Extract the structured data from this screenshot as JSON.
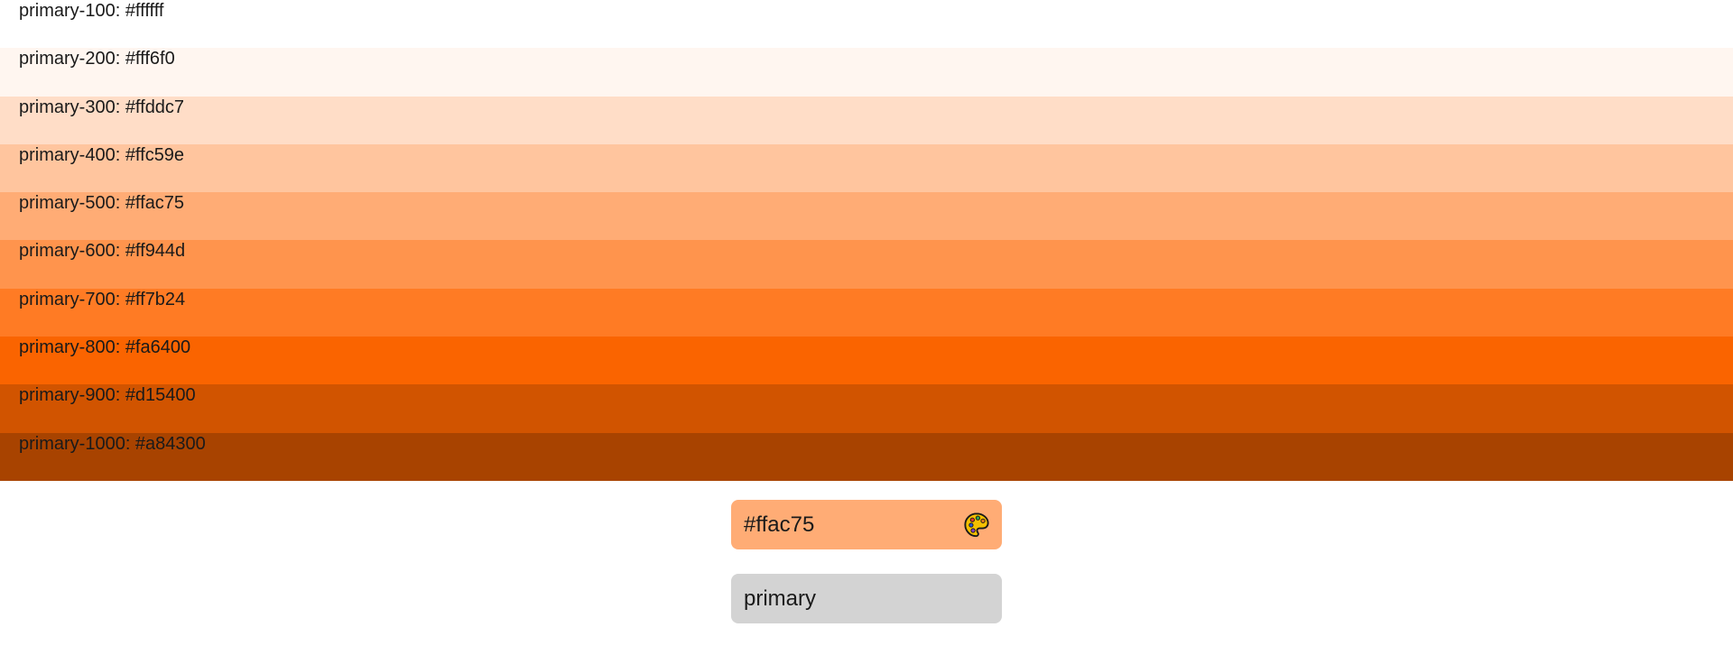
{
  "swatches": [
    {
      "label": "primary-100: #ffffff",
      "color": "#ffffff"
    },
    {
      "label": "primary-200: #fff6f0",
      "color": "#fff6f0"
    },
    {
      "label": "primary-300: #ffddc7",
      "color": "#ffddc7"
    },
    {
      "label": "primary-400: #ffc59e",
      "color": "#ffc59e"
    },
    {
      "label": "primary-500: #ffac75",
      "color": "#ffac75"
    },
    {
      "label": "primary-600: #ff944d",
      "color": "#ff944d"
    },
    {
      "label": "primary-700: #ff7b24",
      "color": "#ff7b24"
    },
    {
      "label": "primary-800: #fa6400",
      "color": "#fa6400"
    },
    {
      "label": "primary-900: #d15400",
      "color": "#d15400"
    },
    {
      "label": "primary-1000: #a84300",
      "color": "#a84300"
    }
  ],
  "color_input": {
    "value": "#ffac75",
    "background": "#ffac75",
    "icon": "palette-icon"
  },
  "name_input": {
    "value": "primary"
  }
}
